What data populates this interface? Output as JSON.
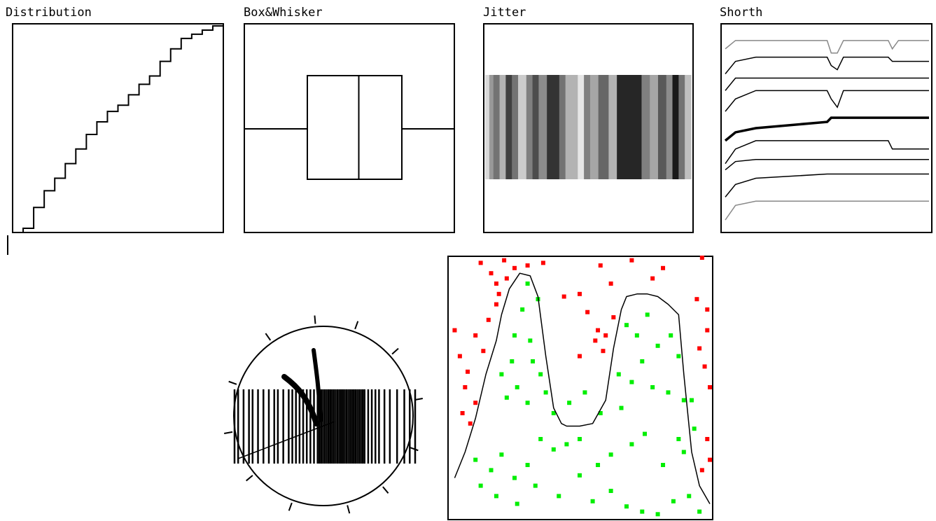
{
  "panels": {
    "distribution": {
      "title": "Distribution"
    },
    "box": {
      "title": "Box&Whisker"
    },
    "jitter": {
      "title": "Jitter"
    },
    "shorth": {
      "title": "Shorth"
    }
  },
  "chart_data": [
    {
      "type": "line",
      "title": "Distribution",
      "kind": "empirical cumulative distribution (step)",
      "x": [
        0.0,
        0.05,
        0.1,
        0.15,
        0.2,
        0.25,
        0.3,
        0.35,
        0.4,
        0.45,
        0.5,
        0.55,
        0.6,
        0.65,
        0.7,
        0.75,
        0.8,
        0.85,
        0.9,
        0.95,
        1.0
      ],
      "y": [
        0.0,
        0.02,
        0.12,
        0.2,
        0.26,
        0.33,
        0.4,
        0.47,
        0.53,
        0.58,
        0.61,
        0.66,
        0.71,
        0.75,
        0.82,
        0.88,
        0.93,
        0.95,
        0.97,
        0.99,
        1.0
      ]
    },
    {
      "type": "box",
      "title": "Box&Whisker",
      "min": 0.0,
      "q1": 0.3,
      "median": 0.545,
      "q3": 0.75,
      "max": 1.0
    },
    {
      "type": "heatmap",
      "title": "Jitter",
      "kind": "density strip (gray levels 0 = white .. 1 = black)",
      "bands": [
        {
          "from": 0.0,
          "to": 0.02,
          "gray": 0.15
        },
        {
          "from": 0.02,
          "to": 0.04,
          "gray": 0.4
        },
        {
          "from": 0.04,
          "to": 0.07,
          "gray": 0.55
        },
        {
          "from": 0.07,
          "to": 0.1,
          "gray": 0.3
        },
        {
          "from": 0.1,
          "to": 0.13,
          "gray": 0.75
        },
        {
          "from": 0.13,
          "to": 0.16,
          "gray": 0.55
        },
        {
          "from": 0.16,
          "to": 0.2,
          "gray": 0.2
        },
        {
          "from": 0.2,
          "to": 0.23,
          "gray": 0.5
        },
        {
          "from": 0.23,
          "to": 0.26,
          "gray": 0.7
        },
        {
          "from": 0.26,
          "to": 0.3,
          "gray": 0.45
        },
        {
          "from": 0.3,
          "to": 0.36,
          "gray": 0.8
        },
        {
          "from": 0.36,
          "to": 0.39,
          "gray": 0.55
        },
        {
          "from": 0.39,
          "to": 0.45,
          "gray": 0.3
        },
        {
          "from": 0.45,
          "to": 0.48,
          "gray": 0.1
        },
        {
          "from": 0.48,
          "to": 0.51,
          "gray": 0.5
        },
        {
          "from": 0.51,
          "to": 0.55,
          "gray": 0.35
        },
        {
          "from": 0.55,
          "to": 0.6,
          "gray": 0.6
        },
        {
          "from": 0.6,
          "to": 0.64,
          "gray": 0.3
        },
        {
          "from": 0.64,
          "to": 0.76,
          "gray": 0.85
        },
        {
          "from": 0.76,
          "to": 0.8,
          "gray": 0.5
        },
        {
          "from": 0.8,
          "to": 0.84,
          "gray": 0.35
        },
        {
          "from": 0.84,
          "to": 0.88,
          "gray": 0.65
        },
        {
          "from": 0.88,
          "to": 0.91,
          "gray": 0.45
        },
        {
          "from": 0.91,
          "to": 0.94,
          "gray": 0.9
        },
        {
          "from": 0.94,
          "to": 0.97,
          "gray": 0.55
        },
        {
          "from": 0.97,
          "to": 1.0,
          "gray": 0.25
        }
      ]
    },
    {
      "type": "line",
      "title": "Shorth",
      "x": [
        0,
        0.05,
        0.15,
        0.5,
        0.52,
        0.55,
        0.58,
        0.62,
        0.8,
        0.82,
        0.85,
        0.9,
        1.0
      ],
      "series": [
        {
          "level": 0.97,
          "color": "#888888",
          "width": 1.5,
          "y": [
            0.88,
            0.92,
            0.92,
            0.92,
            0.86,
            0.86,
            0.92,
            0.92,
            0.92,
            0.88,
            0.92,
            0.92,
            0.92
          ]
        },
        {
          "level": 0.87,
          "color": "#000000",
          "width": 1.5,
          "y": [
            0.76,
            0.82,
            0.84,
            0.84,
            0.8,
            0.78,
            0.84,
            0.84,
            0.84,
            0.82,
            0.82,
            0.82,
            0.82
          ]
        },
        {
          "level": 0.75,
          "color": "#000000",
          "width": 1.5,
          "y": [
            0.68,
            0.74,
            0.74,
            0.74,
            0.74,
            0.74,
            0.74,
            0.74,
            0.74,
            0.74,
            0.74,
            0.74,
            0.74
          ]
        },
        {
          "level": 0.66,
          "color": "#000000",
          "width": 1.5,
          "y": [
            0.58,
            0.64,
            0.68,
            0.68,
            0.64,
            0.6,
            0.68,
            0.68,
            0.68,
            0.68,
            0.68,
            0.68,
            0.68
          ]
        },
        {
          "level": 0.53,
          "color": "#000000",
          "width": 3.5,
          "y": [
            0.44,
            0.48,
            0.5,
            0.53,
            0.55,
            0.55,
            0.55,
            0.55,
            0.55,
            0.55,
            0.55,
            0.55,
            0.55
          ]
        },
        {
          "level": 0.4,
          "color": "#000000",
          "width": 1.5,
          "y": [
            0.33,
            0.4,
            0.44,
            0.44,
            0.44,
            0.44,
            0.44,
            0.44,
            0.44,
            0.4,
            0.4,
            0.4,
            0.4
          ]
        },
        {
          "level": 0.33,
          "color": "#000000",
          "width": 1.5,
          "y": [
            0.3,
            0.34,
            0.35,
            0.35,
            0.35,
            0.35,
            0.35,
            0.35,
            0.35,
            0.35,
            0.35,
            0.35,
            0.35
          ]
        },
        {
          "level": 0.22,
          "color": "#000000",
          "width": 1.5,
          "y": [
            0.17,
            0.23,
            0.26,
            0.28,
            0.28,
            0.28,
            0.28,
            0.28,
            0.28,
            0.28,
            0.28,
            0.28,
            0.28
          ]
        },
        {
          "level": 0.12,
          "color": "#888888",
          "width": 1.5,
          "y": [
            0.06,
            0.13,
            0.15,
            0.15,
            0.15,
            0.15,
            0.15,
            0.15,
            0.15,
            0.15,
            0.15,
            0.15,
            0.15
          ]
        }
      ]
    },
    {
      "type": "other",
      "kind": "circular plot with barcode strip",
      "barcode": [
        0.0,
        0.02,
        0.05,
        0.08,
        0.1,
        0.13,
        0.16,
        0.19,
        0.22,
        0.24,
        0.27,
        0.3,
        0.32,
        0.34,
        0.36,
        0.38,
        0.4,
        0.42,
        0.44,
        0.46,
        0.47,
        0.48,
        0.49,
        0.5,
        0.51,
        0.52,
        0.53,
        0.54,
        0.55,
        0.56,
        0.57,
        0.58,
        0.59,
        0.6,
        0.61,
        0.62,
        0.63,
        0.64,
        0.65,
        0.66,
        0.67,
        0.68,
        0.69,
        0.7,
        0.71,
        0.72,
        0.74,
        0.76,
        0.78,
        0.8,
        0.83,
        0.86,
        0.9,
        0.94,
        0.97,
        1.0
      ],
      "ticks_deg": [
        -70,
        -42,
        -10,
        20,
        50,
        75,
        110,
        140,
        170,
        200,
        235,
        265
      ],
      "tick_color": "#000000"
    },
    {
      "type": "scatter",
      "kind": "classification scatter with boundary curve",
      "xlim": [
        0,
        1
      ],
      "ylim": [
        0,
        1
      ],
      "boundary": {
        "x": [
          0.02,
          0.06,
          0.1,
          0.14,
          0.18,
          0.2,
          0.23,
          0.27,
          0.31,
          0.34,
          0.37,
          0.4,
          0.43,
          0.45,
          0.47,
          0.5,
          0.55,
          0.6,
          0.63,
          0.66,
          0.68,
          0.72,
          0.76,
          0.8,
          0.84,
          0.88,
          0.9,
          0.93,
          0.96,
          1.0
        ],
        "y": [
          0.15,
          0.25,
          0.38,
          0.55,
          0.68,
          0.78,
          0.88,
          0.94,
          0.93,
          0.85,
          0.62,
          0.42,
          0.36,
          0.35,
          0.35,
          0.35,
          0.36,
          0.45,
          0.65,
          0.8,
          0.85,
          0.86,
          0.86,
          0.85,
          0.82,
          0.78,
          0.55,
          0.25,
          0.12,
          0.05
        ],
        "color": "#000000"
      },
      "series": [
        {
          "color": "#ff0000",
          "points": [
            [
              0.12,
              0.98
            ],
            [
              0.16,
              0.94
            ],
            [
              0.21,
              0.99
            ],
            [
              0.25,
              0.96
            ],
            [
              0.3,
              0.97
            ],
            [
              0.36,
              0.98
            ],
            [
              0.18,
              0.9
            ],
            [
              0.22,
              0.92
            ],
            [
              0.44,
              0.85
            ],
            [
              0.5,
              0.86
            ],
            [
              0.58,
              0.97
            ],
            [
              0.62,
              0.9
            ],
            [
              0.7,
              0.99
            ],
            [
              0.78,
              0.92
            ],
            [
              0.82,
              0.96
            ],
            [
              0.97,
              1.0
            ],
            [
              0.99,
              0.8
            ],
            [
              0.95,
              0.84
            ],
            [
              0.04,
              0.62
            ],
            [
              0.07,
              0.56
            ],
            [
              0.1,
              0.7
            ],
            [
              0.13,
              0.64
            ],
            [
              0.15,
              0.76
            ],
            [
              0.18,
              0.82
            ],
            [
              0.19,
              0.86
            ],
            [
              0.53,
              0.79
            ],
            [
              0.56,
              0.68
            ],
            [
              0.57,
              0.72
            ],
            [
              0.6,
              0.7
            ],
            [
              0.63,
              0.77
            ],
            [
              0.5,
              0.62
            ],
            [
              0.59,
              0.64
            ],
            [
              0.96,
              0.65
            ],
            [
              0.98,
              0.58
            ],
            [
              0.99,
              0.72
            ],
            [
              1.0,
              0.5
            ],
            [
              0.97,
              0.18
            ],
            [
              1.0,
              0.22
            ],
            [
              0.99,
              0.3
            ],
            [
              0.05,
              0.4
            ],
            [
              0.08,
              0.36
            ],
            [
              0.1,
              0.44
            ],
            [
              0.06,
              0.5
            ],
            [
              0.02,
              0.72
            ]
          ],
          "label": ""
        },
        {
          "color": "#00ee00",
          "points": [
            [
              0.3,
              0.9
            ],
            [
              0.34,
              0.84
            ],
            [
              0.28,
              0.8
            ],
            [
              0.25,
              0.7
            ],
            [
              0.31,
              0.68
            ],
            [
              0.24,
              0.6
            ],
            [
              0.2,
              0.55
            ],
            [
              0.32,
              0.6
            ],
            [
              0.26,
              0.5
            ],
            [
              0.22,
              0.46
            ],
            [
              0.3,
              0.44
            ],
            [
              0.35,
              0.55
            ],
            [
              0.37,
              0.48
            ],
            [
              0.68,
              0.74
            ],
            [
              0.72,
              0.7
            ],
            [
              0.76,
              0.78
            ],
            [
              0.8,
              0.66
            ],
            [
              0.85,
              0.7
            ],
            [
              0.88,
              0.62
            ],
            [
              0.74,
              0.6
            ],
            [
              0.65,
              0.55
            ],
            [
              0.78,
              0.5
            ],
            [
              0.84,
              0.48
            ],
            [
              0.9,
              0.45
            ],
            [
              0.93,
              0.45
            ],
            [
              0.94,
              0.34
            ],
            [
              0.9,
              0.25
            ],
            [
              0.88,
              0.3
            ],
            [
              0.82,
              0.2
            ],
            [
              0.75,
              0.32
            ],
            [
              0.7,
              0.28
            ],
            [
              0.62,
              0.24
            ],
            [
              0.57,
              0.2
            ],
            [
              0.5,
              0.3
            ],
            [
              0.45,
              0.28
            ],
            [
              0.4,
              0.26
            ],
            [
              0.35,
              0.3
            ],
            [
              0.3,
              0.2
            ],
            [
              0.25,
              0.15
            ],
            [
              0.2,
              0.24
            ],
            [
              0.16,
              0.18
            ],
            [
              0.12,
              0.12
            ],
            [
              0.1,
              0.22
            ],
            [
              0.18,
              0.08
            ],
            [
              0.26,
              0.05
            ],
            [
              0.33,
              0.12
            ],
            [
              0.42,
              0.08
            ],
            [
              0.5,
              0.16
            ],
            [
              0.55,
              0.06
            ],
            [
              0.62,
              0.1
            ],
            [
              0.68,
              0.04
            ],
            [
              0.74,
              0.02
            ],
            [
              0.8,
              0.01
            ],
            [
              0.86,
              0.06
            ],
            [
              0.92,
              0.08
            ],
            [
              0.96,
              0.02
            ],
            [
              0.4,
              0.4
            ],
            [
              0.46,
              0.44
            ],
            [
              0.52,
              0.48
            ],
            [
              0.58,
              0.4
            ],
            [
              0.66,
              0.42
            ],
            [
              0.7,
              0.52
            ]
          ],
          "label": ""
        }
      ]
    }
  ]
}
